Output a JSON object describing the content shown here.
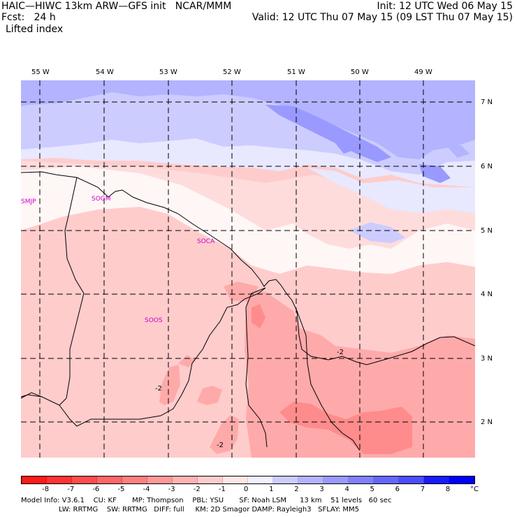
{
  "header": {
    "line1_left": "HAIC—HIWC 13km ARW—GFS init   NCAR/MMM",
    "line2_left": "Fcst:   24 h",
    "line3_left": "Lifted index",
    "line1_right": "Init: 12 UTC Wed 06 May 15",
    "line2_right": "Valid: 12 UTC Thu 07 May 15 (09 LST Thu 07 May 15)"
  },
  "axes": {
    "lon_labels": [
      "55 W",
      "54 W",
      "53 W",
      "52 W",
      "51 W",
      "50 W",
      "49 W"
    ],
    "lat_labels": [
      "7 N",
      "6 N",
      "5 N",
      "4 N",
      "3 N",
      "2 N"
    ]
  },
  "stations": [
    "SMJP",
    "SOGM",
    "SOCA",
    "SOOS"
  ],
  "contour_labels": [
    "-2",
    "-2",
    "-2"
  ],
  "colorbar": {
    "ticks": [
      "-8",
      "-7",
      "-6",
      "-5",
      "-4",
      "-3",
      "-2",
      "-1",
      "0",
      "1",
      "2",
      "3",
      "4",
      "5",
      "6",
      "7",
      "8"
    ],
    "unit": "°C",
    "colors": [
      "#ff1a1a",
      "#ff3333",
      "#ff4d4d",
      "#ff6666",
      "#ff8080",
      "#ff9999",
      "#ffb3b3",
      "#ffcccc",
      "#ffe6e6",
      "#f2f2ff",
      "#ccccff",
      "#b3b3ff",
      "#9999ff",
      "#8080ff",
      "#6666ff",
      "#4d4dff",
      "#1a1aff",
      "#0000ff"
    ]
  },
  "map_colors": {
    "blue_strong": "#9999ff",
    "blue_mid": "#b3b3ff",
    "blue_light": "#ccccff",
    "blue_pale": "#e8e8ff",
    "white": "#fff6f6",
    "pink_pale": "#ffdcdc",
    "pink_light": "#ffcccc",
    "pink_mid": "#ffaaaa",
    "pink_strong": "#ff8c8c"
  },
  "footer": {
    "line1": "Model Info: V3.6.1    CU: KF       MP: Thompson    PBL: YSU       SF: Noah LSM      13 km    51 levels   60 sec",
    "line2": "                 LW: RRTMG    SW: RRTMG   DIFF: full     KM: 2D Smagor DAMP: Rayleigh3   SFLAY: MM5"
  }
}
